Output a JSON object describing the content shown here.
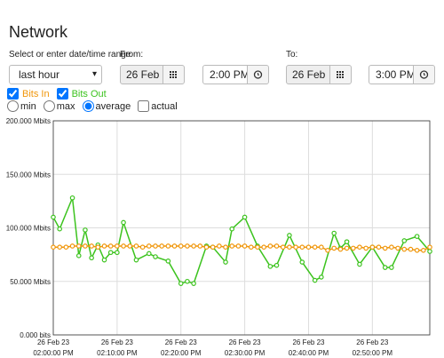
{
  "title": "Network",
  "range_label": "Select or enter date/time range",
  "range_select": "last hour",
  "from": {
    "label": "From:",
    "date": "26 Feb 23",
    "time": "2:00 PM"
  },
  "to": {
    "label": "To:",
    "date": "26 Feb 23",
    "time": "3:00 PM"
  },
  "options": [
    "min",
    "max",
    "average",
    "actual"
  ],
  "selected_option": 2,
  "chart_data": {
    "type": "line",
    "grid": true,
    "xlim": [
      0,
      59
    ],
    "ylim": [
      0,
      200
    ],
    "yticks": [
      {
        "value": 0,
        "label": "0.000 bits"
      },
      {
        "value": 50,
        "label": "50.000 Mbits"
      },
      {
        "value": 100,
        "label": "100.000 Mbits"
      },
      {
        "value": 150,
        "label": "150.000 Mbits"
      },
      {
        "value": 200,
        "label": "200.000 Mbits"
      }
    ],
    "xticks": [
      {
        "value": 0,
        "label": [
          "26 Feb 23",
          "02:00:00 PM"
        ]
      },
      {
        "value": 10,
        "label": [
          "26 Feb 23",
          "02:10:00 PM"
        ]
      },
      {
        "value": 20,
        "label": [
          "26 Feb 23",
          "02:20:00 PM"
        ]
      },
      {
        "value": 30,
        "label": [
          "26 Feb 23",
          "02:30:00 PM"
        ]
      },
      {
        "value": 40,
        "label": [
          "26 Feb 23",
          "02:40:00 PM"
        ]
      },
      {
        "value": 50,
        "label": [
          "26 Feb 23",
          "02:50:00 PM"
        ]
      }
    ],
    "series": [
      {
        "name": "Bits In",
        "color": "#f0960a",
        "checked": true,
        "x": [
          0,
          1,
          2,
          3,
          4,
          5,
          6,
          7,
          8,
          9,
          10,
          11,
          12,
          13,
          14,
          15,
          16,
          17,
          18,
          19,
          20,
          21,
          22,
          23,
          24,
          25,
          26,
          27,
          28,
          29,
          30,
          31,
          32,
          33,
          34,
          35,
          36,
          37,
          38,
          39,
          40,
          41,
          42,
          43,
          44,
          45,
          46,
          47,
          48,
          49,
          50,
          51,
          52,
          53,
          54,
          55,
          56,
          57,
          58,
          59
        ],
        "values": [
          82,
          82,
          82,
          83,
          83,
          83,
          83,
          82,
          83,
          83,
          83,
          83,
          83,
          83,
          82,
          83,
          83,
          83,
          83,
          83,
          83,
          83,
          83,
          83,
          82,
          82,
          83,
          82,
          83,
          83,
          83,
          82,
          82,
          82,
          83,
          83,
          82,
          82,
          82,
          82,
          82,
          82,
          82,
          79,
          81,
          80,
          81,
          81,
          82,
          81,
          82,
          82,
          81,
          82,
          81,
          80,
          80,
          79,
          79,
          82
        ]
      },
      {
        "name": "Bits Out",
        "color": "#3cc31e",
        "checked": true,
        "x": [
          0,
          1,
          3,
          4,
          5,
          6,
          7,
          8,
          9,
          10,
          11,
          13,
          15,
          16,
          18,
          20,
          21,
          22,
          24,
          25,
          27,
          28,
          30,
          32,
          34,
          35,
          37,
          39,
          41,
          42,
          44,
          45,
          46,
          48,
          50,
          52,
          53,
          55,
          57,
          59
        ],
        "values": [
          110,
          99,
          128,
          74,
          98,
          72,
          84,
          70,
          77,
          77,
          105,
          70,
          76,
          73,
          69,
          48,
          50,
          48,
          83,
          82,
          68,
          99,
          110,
          83,
          64,
          65,
          93,
          68,
          51,
          54,
          95,
          81,
          87,
          66,
          82,
          63,
          63,
          88,
          92,
          78
        ]
      }
    ]
  }
}
